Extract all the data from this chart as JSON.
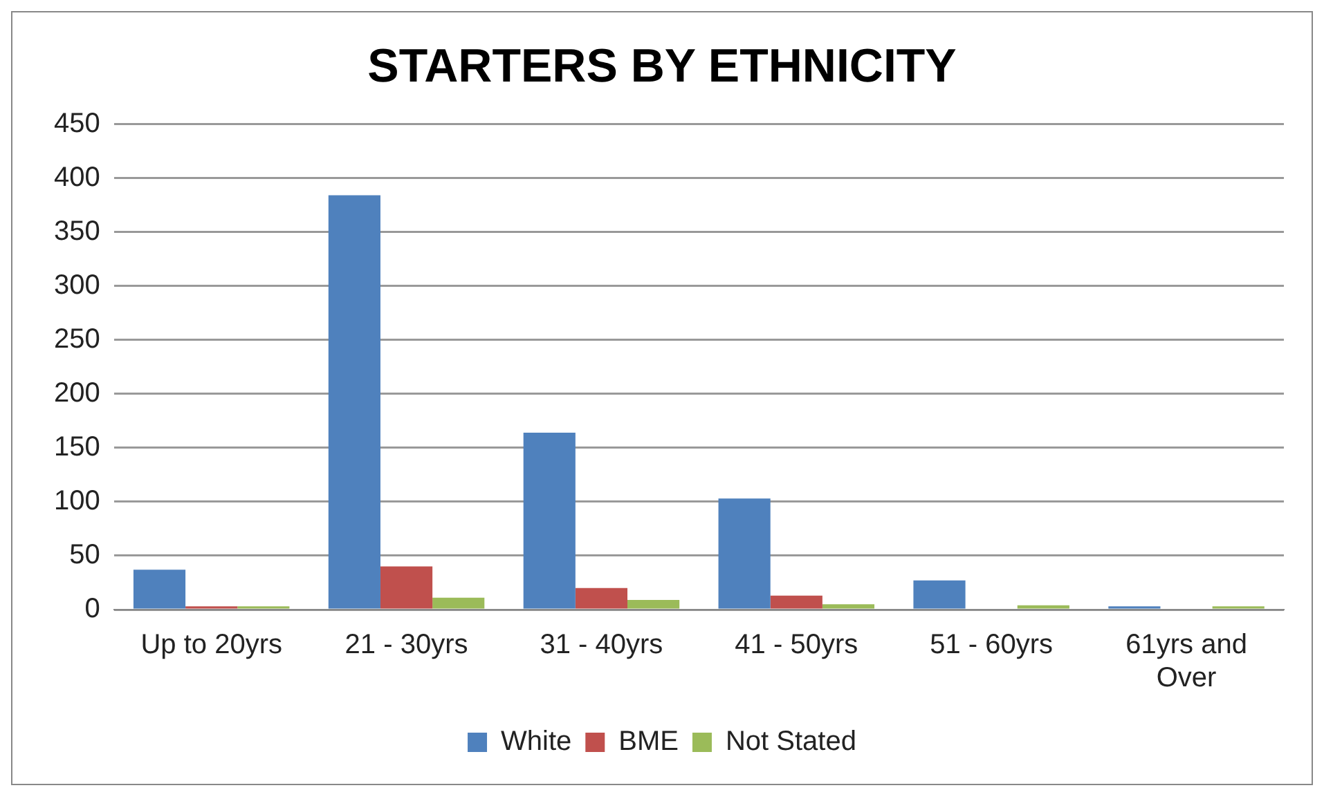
{
  "chart_data": {
    "type": "bar",
    "title": "STARTERS BY ETHNICITY",
    "categories": [
      "Up to 20yrs",
      "21 - 30yrs",
      "31 - 40yrs",
      "41 - 50yrs",
      "51 - 60yrs",
      "61yrs and Over"
    ],
    "series": [
      {
        "name": "White",
        "color": "#4f81bd",
        "values": [
          37,
          384,
          164,
          103,
          27,
          3
        ]
      },
      {
        "name": "BME",
        "color": "#c0504d",
        "values": [
          3,
          40,
          20,
          13,
          0,
          0
        ]
      },
      {
        "name": "Not Stated",
        "color": "#9bbb59",
        "values": [
          3,
          11,
          9,
          5,
          4,
          3
        ]
      }
    ],
    "ylim": [
      0,
      450
    ],
    "yticks": [
      0,
      50,
      100,
      150,
      200,
      250,
      300,
      350,
      400,
      450
    ],
    "grid": "y",
    "legend": "bottom"
  }
}
